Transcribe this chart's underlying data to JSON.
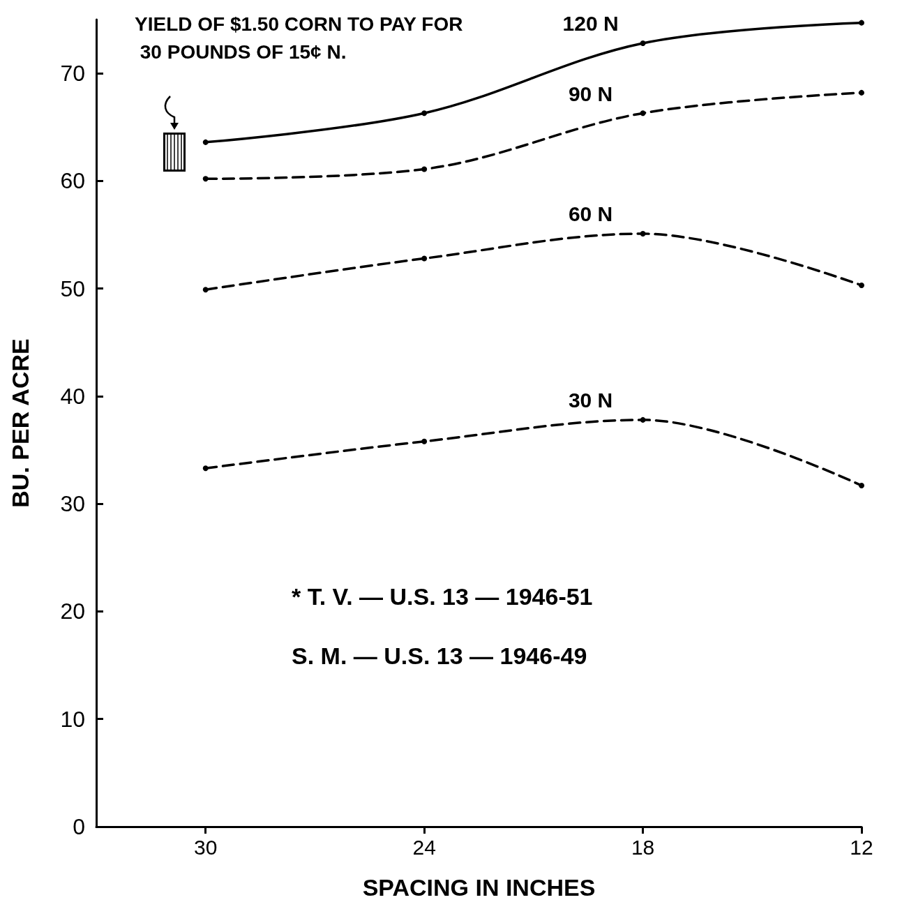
{
  "chart_data": {
    "type": "line",
    "xlabel": "SPACING IN INCHES",
    "ylabel": "BU. PER ACRE",
    "x": [
      30,
      24,
      18,
      12
    ],
    "xlim": [
      33,
      12
    ],
    "xticks": [
      30,
      24,
      18,
      12
    ],
    "ylim": [
      0,
      75
    ],
    "yticks": [
      0,
      10,
      20,
      30,
      40,
      50,
      60,
      70
    ],
    "grid": false,
    "legend": false,
    "marker": "circle",
    "series": [
      {
        "name": "120 N",
        "color": "#000000",
        "line_style": "solid",
        "values": [
          63.6,
          66.3,
          72.8,
          74.7
        ]
      },
      {
        "name": "90 N",
        "color": "#000000",
        "line_style": "dashed",
        "values": [
          60.2,
          61.1,
          66.3,
          68.2
        ]
      },
      {
        "name": "60 N",
        "color": "#000000",
        "line_style": "dashed",
        "values": [
          49.9,
          52.8,
          55.1,
          50.3
        ]
      },
      {
        "name": "30 N",
        "color": "#000000",
        "line_style": "dashed",
        "values": [
          33.3,
          35.8,
          37.8,
          31.7
        ]
      }
    ],
    "annotations": [
      "YIELD OF $1.50 CORN TO PAY FOR 30 POUNDS OF 15¢ N.",
      "* T. V. — U.S. 13 — 1946-51",
      "S. M. — U.S. 13 — 1946-49"
    ]
  }
}
